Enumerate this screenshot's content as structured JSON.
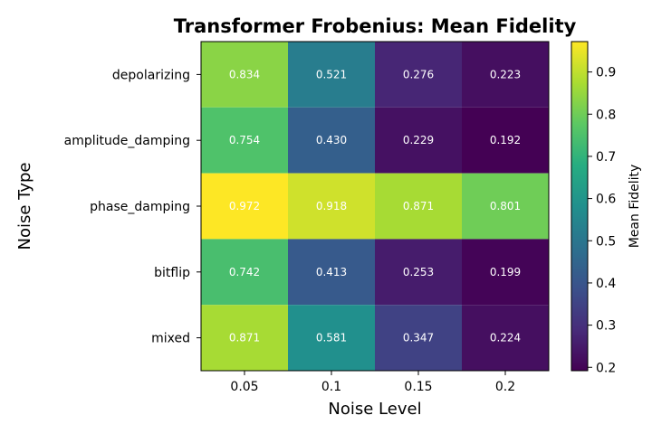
{
  "chart_data": {
    "type": "heatmap",
    "title": "Transformer Frobenius: Mean Fidelity",
    "xlabel": "Noise Level",
    "ylabel": "Noise Type",
    "x_categories": [
      "0.05",
      "0.1",
      "0.15",
      "0.2"
    ],
    "y_categories": [
      "depolarizing",
      "amplitude_damping",
      "phase_damping",
      "bitflip",
      "mixed"
    ],
    "values": [
      [
        0.834,
        0.521,
        0.276,
        0.223
      ],
      [
        0.754,
        0.43,
        0.229,
        0.192
      ],
      [
        0.972,
        0.918,
        0.871,
        0.801
      ],
      [
        0.742,
        0.413,
        0.253,
        0.199
      ],
      [
        0.871,
        0.581,
        0.347,
        0.224
      ]
    ],
    "colorscale": "viridis",
    "colorbar": {
      "label": "Mean Fidelity",
      "range": [
        0.192,
        0.972
      ],
      "ticks": [
        "0.2",
        "0.3",
        "0.4",
        "0.5",
        "0.6",
        "0.7",
        "0.8",
        "0.9"
      ]
    },
    "value_labels": true,
    "value_label_color": "#ffffff",
    "grid": false
  }
}
